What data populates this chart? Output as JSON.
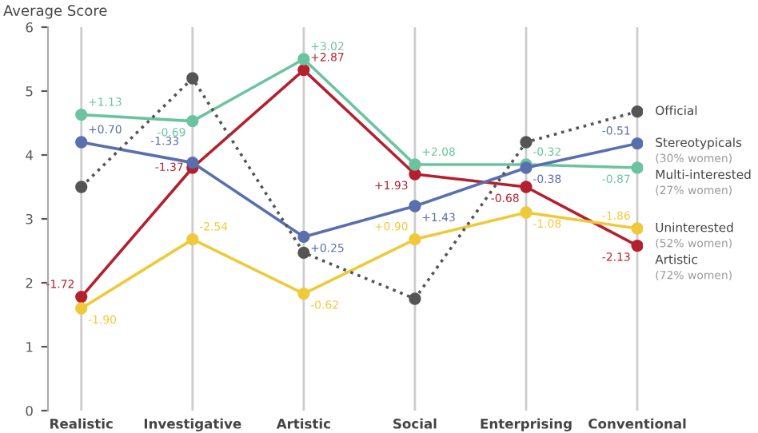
{
  "chart_data": {
    "type": "line",
    "ylabel": "Average Score",
    "categories": [
      "Realistic",
      "Investigative",
      "Artistic",
      "Social",
      "Enterprising",
      "Conventional"
    ],
    "ylim": [
      0,
      6
    ],
    "yticks": [
      0,
      1,
      2,
      3,
      4,
      5,
      6
    ],
    "grid": "x",
    "marker": "circle",
    "series": [
      {
        "name": "Official",
        "color": "#555555",
        "line_style": "dotted",
        "values": [
          3.5,
          5.2,
          2.47,
          1.75,
          4.2,
          4.68
        ]
      },
      {
        "name": "Stereotypicals\n(30% women)",
        "color": "#5a6fae",
        "values": [
          4.2,
          3.88,
          2.72,
          3.2,
          3.8,
          4.18
        ]
      },
      {
        "name": "Multi-interested\n(27% women)",
        "color": "#6cc3a0",
        "values": [
          4.63,
          4.53,
          5.5,
          3.85,
          3.85,
          3.8
        ]
      },
      {
        "name": "Uninterested\n(52% women)",
        "color": "#f0c93a",
        "values": [
          1.6,
          2.68,
          1.83,
          2.68,
          3.1,
          2.85
        ]
      },
      {
        "name": "Artistic\n(72% women)",
        "color": "#b5202e",
        "values": [
          1.78,
          3.8,
          5.33,
          3.7,
          3.5,
          2.58
        ]
      }
    ],
    "annotations": [
      {
        "text": "+0.70",
        "x": "Realistic",
        "y": 4.2
      },
      {
        "text": "-1.33",
        "x": "Investigative",
        "y": 3.88
      },
      {
        "text": "+0.25",
        "x": "Artistic",
        "y": 2.72
      },
      {
        "text": "+1.43",
        "x": "Social",
        "y": 3.2
      },
      {
        "text": "-0.38",
        "x": "Enterprising",
        "y": 3.8
      },
      {
        "text": "-0.51",
        "x": "Conventional",
        "y": 4.18
      },
      {
        "text": "+1.13",
        "x": "Realistic",
        "y": 4.63
      },
      {
        "text": "-0.69",
        "x": "Investigative",
        "y": 4.53
      },
      {
        "text": "+3.02",
        "x": "Artistic",
        "y": 5.5
      },
      {
        "text": "+2.08",
        "x": "Social",
        "y": 3.85
      },
      {
        "text": "-0.32",
        "x": "Enterprising",
        "y": 3.85
      },
      {
        "text": "-0.87",
        "x": "Conventional",
        "y": 3.8
      },
      {
        "text": "-1.90",
        "x": "Realistic",
        "y": 1.6
      },
      {
        "text": "-2.54",
        "x": "Investigative",
        "y": 2.68
      },
      {
        "text": "-0.62",
        "x": "Artistic",
        "y": 1.83
      },
      {
        "text": "+0.90",
        "x": "Social",
        "y": 2.68
      },
      {
        "text": "-1.08",
        "x": "Enterprising",
        "y": 3.1
      },
      {
        "text": "-1.86",
        "x": "Conventional",
        "y": 2.85
      },
      {
        "text": "-1.72",
        "x": "Realistic",
        "y": 1.78
      },
      {
        "text": "-1.37",
        "x": "Investigative",
        "y": 3.8
      },
      {
        "text": "+2.87",
        "x": "Artistic",
        "y": 5.33
      },
      {
        "text": "+1.93",
        "x": "Social",
        "y": 3.7
      },
      {
        "text": "-0.68",
        "x": "Enterprising",
        "y": 3.5
      },
      {
        "text": "-2.13",
        "x": "Conventional",
        "y": 2.58
      }
    ]
  }
}
